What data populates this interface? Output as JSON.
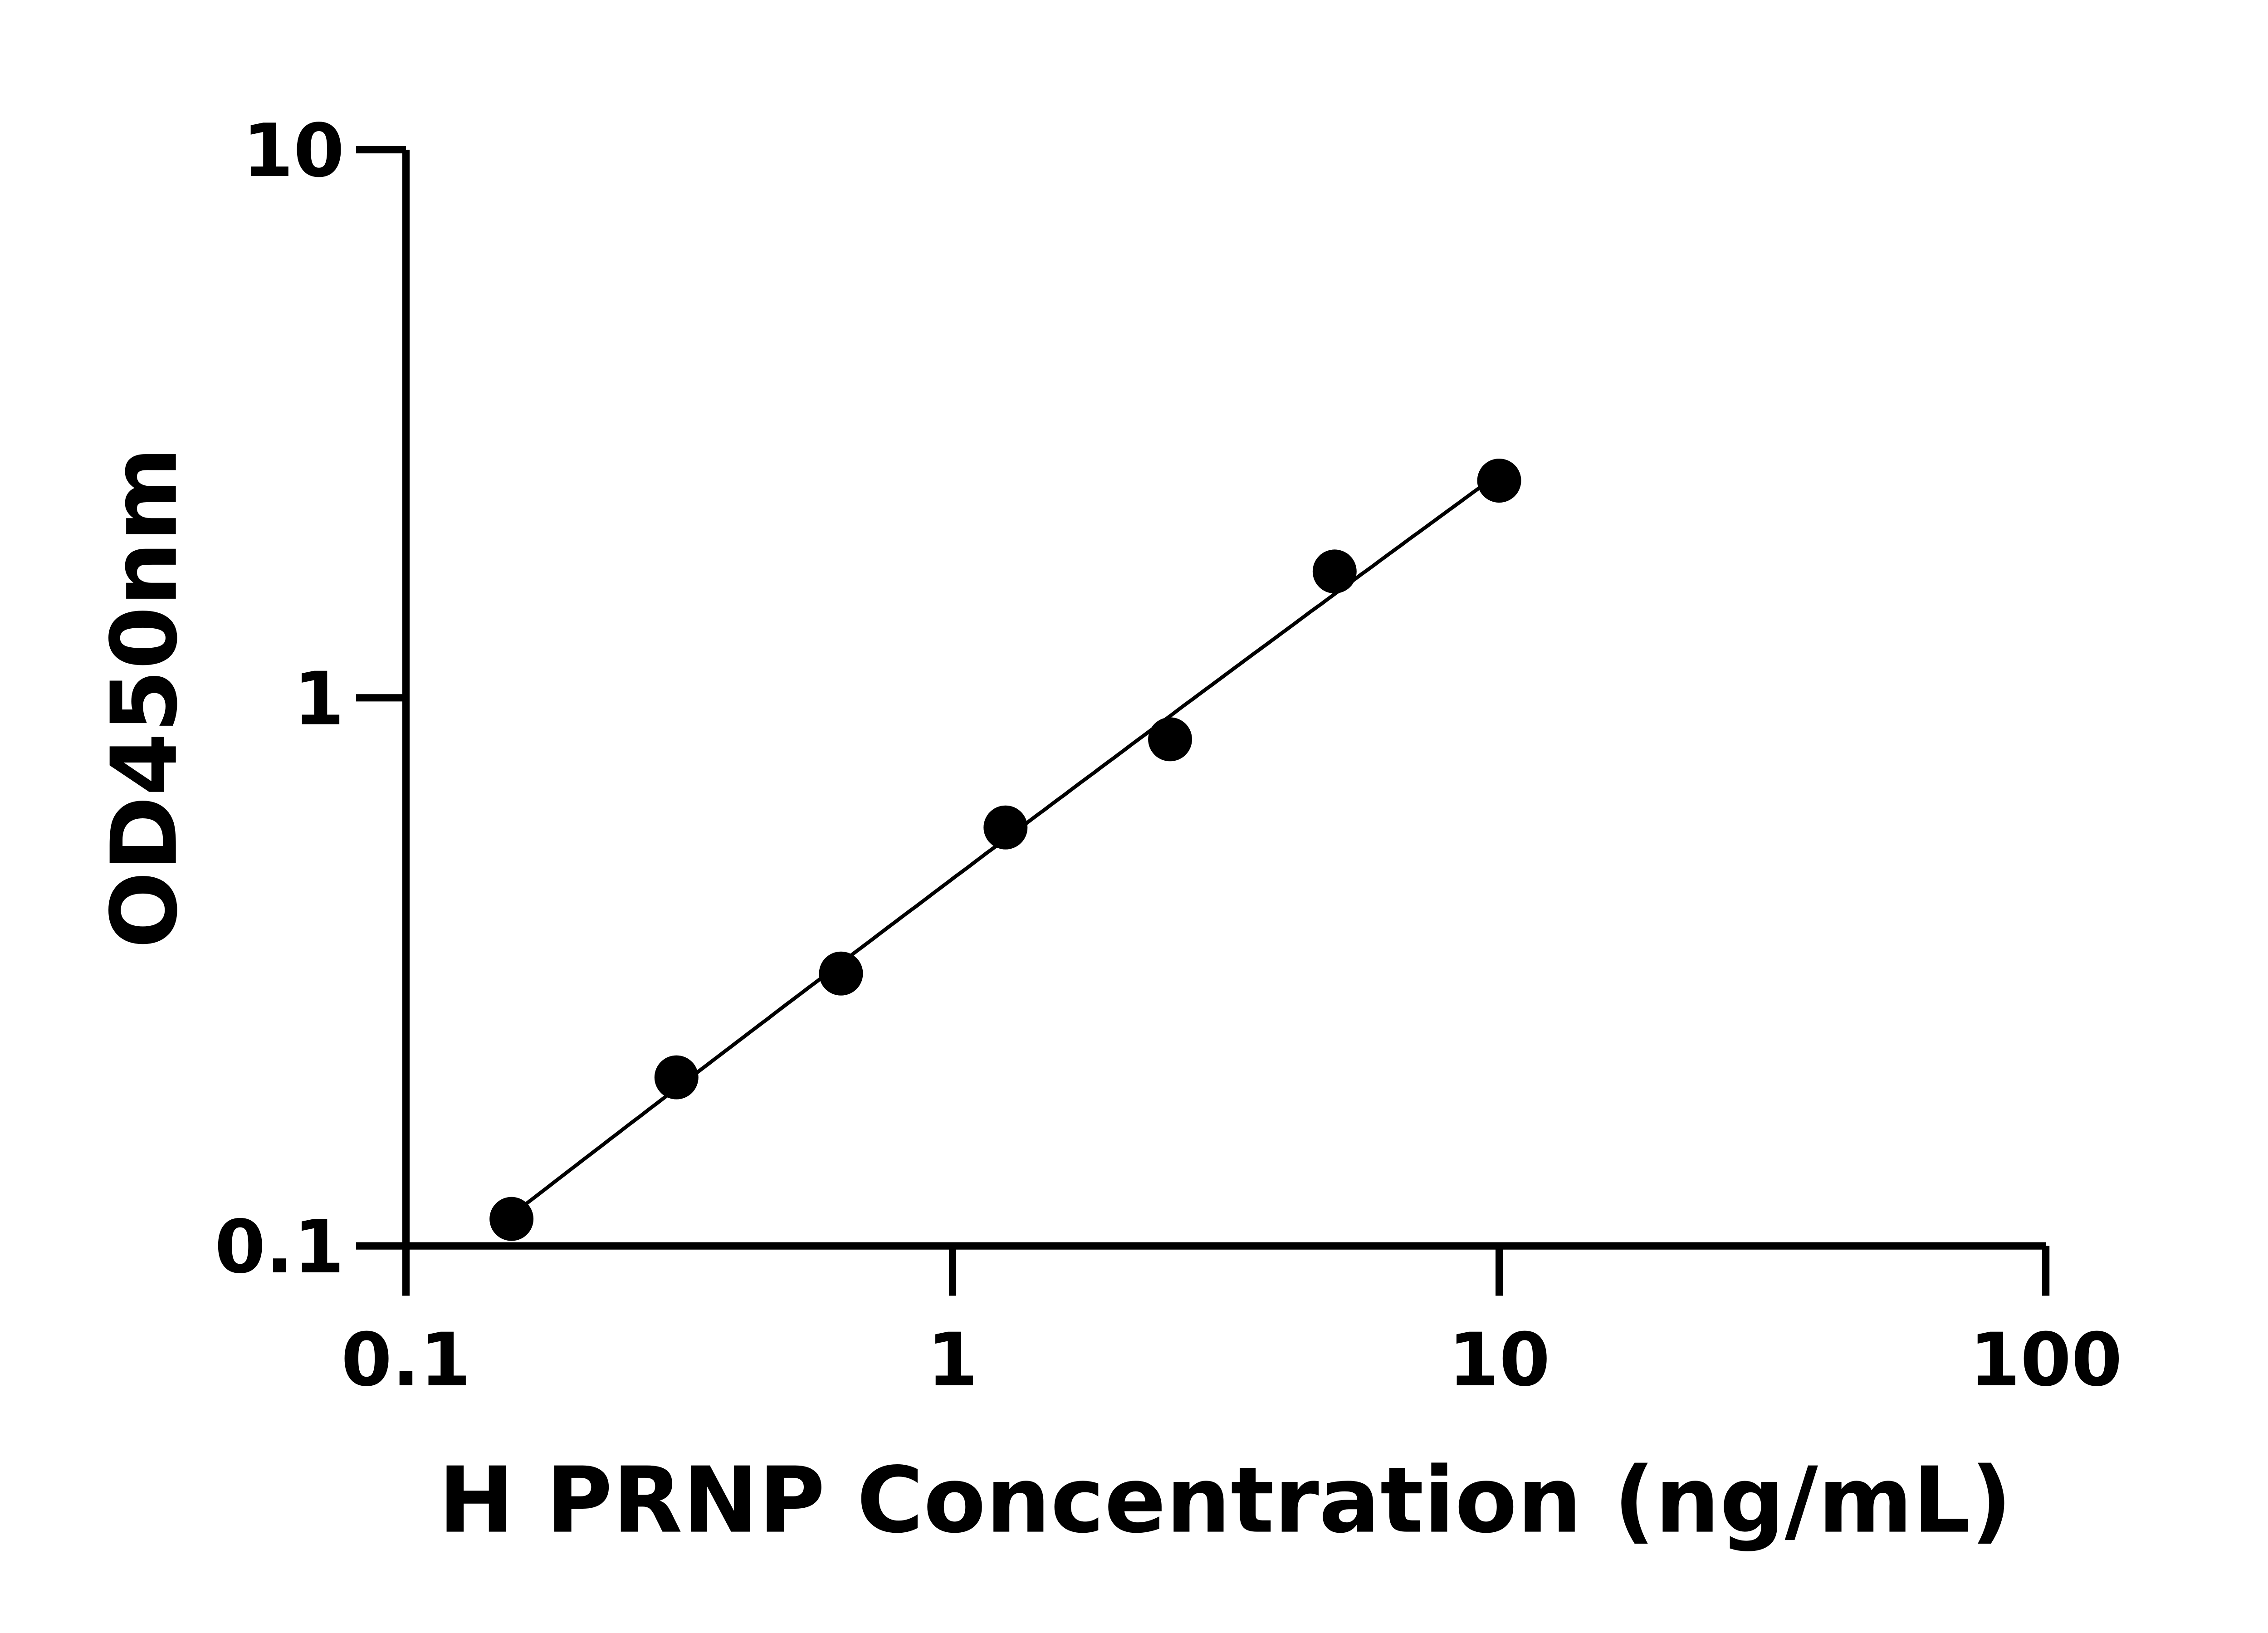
{
  "chart_data": {
    "type": "scatter",
    "title": "",
    "xlabel": "H PRNP Concentration (ng/mL)",
    "ylabel": "OD450nm",
    "x_scale": "log",
    "y_scale": "log",
    "xlim": [
      0.1,
      100
    ],
    "ylim": [
      0.1,
      10
    ],
    "x_ticks": [
      "0.1",
      "1",
      "10",
      "100"
    ],
    "y_ticks": [
      "0.1",
      "1",
      "10"
    ],
    "grid": false,
    "fit_curve": true,
    "colors": {
      "points": "#000000",
      "curve": "#000000"
    },
    "x": [
      0.156,
      0.3125,
      0.625,
      1.25,
      2.5,
      5,
      10
    ],
    "y": [
      0.112,
      0.203,
      0.314,
      0.58,
      0.84,
      1.7,
      2.49
    ]
  }
}
